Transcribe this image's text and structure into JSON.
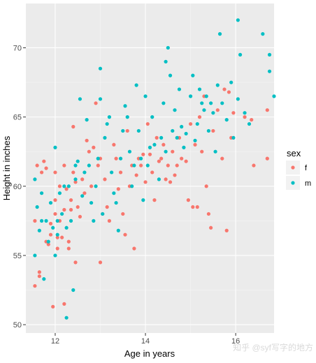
{
  "chart_data": {
    "type": "scatter",
    "title": "",
    "xlabel": "Age in years",
    "ylabel": "Height in inches",
    "xlim": [
      11.35,
      16.85
    ],
    "ylim": [
      49.4,
      73.2
    ],
    "x_ticks": [
      12,
      14,
      16
    ],
    "y_ticks": [
      50,
      55,
      60,
      65,
      70
    ],
    "grid": true,
    "legend": {
      "title": "sex",
      "placement": "right",
      "entries": [
        "f",
        "m"
      ]
    },
    "series": [
      {
        "name": "f",
        "color": "#F8766D",
        "points": [
          [
            11.55,
            57.5
          ],
          [
            11.55,
            52.8
          ],
          [
            11.6,
            61.5
          ],
          [
            11.65,
            53.8
          ],
          [
            11.65,
            53.5
          ],
          [
            11.7,
            61.0
          ],
          [
            11.75,
            61.8
          ],
          [
            11.8,
            61.3
          ],
          [
            11.8,
            56.0
          ],
          [
            11.85,
            55.8
          ],
          [
            11.9,
            56.5
          ],
          [
            11.9,
            57.3
          ],
          [
            11.95,
            51.3
          ],
          [
            12.0,
            61.0
          ],
          [
            12.0,
            59.0
          ],
          [
            12.0,
            58.0
          ],
          [
            12.05,
            56.3
          ],
          [
            12.05,
            55.5
          ],
          [
            12.1,
            60.0
          ],
          [
            12.1,
            57.5
          ],
          [
            12.15,
            56.3
          ],
          [
            12.2,
            61.5
          ],
          [
            12.2,
            58.3
          ],
          [
            12.2,
            51.5
          ],
          [
            12.25,
            59.8
          ],
          [
            12.3,
            55.5
          ],
          [
            12.3,
            56.0
          ],
          [
            12.35,
            58.3
          ],
          [
            12.35,
            59.0
          ],
          [
            12.4,
            64.3
          ],
          [
            12.4,
            61.0
          ],
          [
            12.45,
            60.3
          ],
          [
            12.45,
            54.5
          ],
          [
            12.5,
            58.5
          ],
          [
            12.55,
            57.8
          ],
          [
            12.6,
            60.5
          ],
          [
            12.65,
            59.5
          ],
          [
            12.7,
            63.3
          ],
          [
            12.75,
            62.5
          ],
          [
            12.8,
            60.0
          ],
          [
            12.85,
            62.8
          ],
          [
            12.9,
            66.0
          ],
          [
            12.95,
            61.5
          ],
          [
            13.0,
            54.5
          ],
          [
            13.0,
            62.0
          ],
          [
            13.05,
            58.0
          ],
          [
            13.1,
            60.5
          ],
          [
            13.15,
            58.5
          ],
          [
            13.2,
            57.5
          ],
          [
            13.3,
            63.0
          ],
          [
            13.35,
            62.0
          ],
          [
            13.4,
            59.8
          ],
          [
            13.45,
            61.0
          ],
          [
            13.5,
            58.0
          ],
          [
            13.55,
            56.5
          ],
          [
            13.6,
            64.0
          ],
          [
            13.65,
            60.0
          ],
          [
            13.7,
            61.5
          ],
          [
            13.75,
            55.5
          ],
          [
            13.8,
            60.8
          ],
          [
            13.85,
            62.0
          ],
          [
            13.9,
            61.5
          ],
          [
            13.95,
            62.3
          ],
          [
            14.0,
            60.3
          ],
          [
            14.05,
            64.5
          ],
          [
            14.1,
            62.3
          ],
          [
            14.15,
            61.0
          ],
          [
            14.2,
            59.0
          ],
          [
            14.25,
            63.5
          ],
          [
            14.3,
            61.8
          ],
          [
            14.35,
            62.0
          ],
          [
            14.4,
            63.0
          ],
          [
            14.45,
            60.5
          ],
          [
            14.5,
            61.5
          ],
          [
            14.55,
            60.3
          ],
          [
            14.6,
            62.5
          ],
          [
            14.65,
            60.8
          ],
          [
            14.7,
            61.5
          ],
          [
            14.75,
            63.5
          ],
          [
            14.8,
            62.0
          ],
          [
            14.9,
            61.8
          ],
          [
            14.95,
            59.0
          ],
          [
            15.0,
            64.5
          ],
          [
            15.05,
            58.5
          ],
          [
            15.1,
            63.0
          ],
          [
            15.15,
            58.5
          ],
          [
            15.2,
            65.0
          ],
          [
            15.25,
            62.5
          ],
          [
            15.3,
            66.5
          ],
          [
            15.35,
            60.0
          ],
          [
            15.4,
            58.0
          ],
          [
            15.45,
            57.0
          ],
          [
            15.5,
            64.0
          ],
          [
            15.6,
            65.5
          ],
          [
            15.7,
            62.0
          ],
          [
            15.75,
            67.0
          ],
          [
            15.8,
            56.8
          ],
          [
            15.85,
            66.8
          ],
          [
            15.9,
            63.5
          ],
          [
            15.95,
            65.3
          ],
          [
            16.2,
            65.0
          ],
          [
            16.35,
            64.8
          ],
          [
            16.4,
            61.5
          ],
          [
            16.7,
            65.5
          ],
          [
            16.7,
            62.0
          ]
        ]
      },
      {
        "name": "m",
        "color": "#00BFC4",
        "points": [
          [
            11.55,
            60.5
          ],
          [
            11.55,
            55.0
          ],
          [
            11.6,
            58.5
          ],
          [
            11.65,
            56.8
          ],
          [
            11.7,
            59.5
          ],
          [
            11.7,
            57.5
          ],
          [
            11.75,
            53.3
          ],
          [
            11.8,
            57.5
          ],
          [
            11.85,
            56.0
          ],
          [
            11.9,
            58.8
          ],
          [
            11.95,
            57.0
          ],
          [
            12.0,
            62.8
          ],
          [
            12.0,
            55.0
          ],
          [
            12.05,
            57.5
          ],
          [
            12.05,
            56.5
          ],
          [
            12.1,
            59.5
          ],
          [
            12.15,
            58.0
          ],
          [
            12.2,
            60.0
          ],
          [
            12.25,
            57.0
          ],
          [
            12.25,
            50.5
          ],
          [
            12.3,
            60.0
          ],
          [
            12.35,
            57.5
          ],
          [
            12.4,
            52.5
          ],
          [
            12.45,
            61.5
          ],
          [
            12.45,
            60.5
          ],
          [
            12.5,
            61.8
          ],
          [
            12.55,
            66.3
          ],
          [
            12.6,
            59.3
          ],
          [
            12.65,
            61.0
          ],
          [
            12.7,
            64.8
          ],
          [
            12.75,
            61.5
          ],
          [
            12.8,
            58.8
          ],
          [
            12.85,
            57.5
          ],
          [
            12.9,
            60.0
          ],
          [
            12.95,
            62.0
          ],
          [
            13.0,
            68.5
          ],
          [
            13.0,
            66.3
          ],
          [
            13.05,
            58.0
          ],
          [
            13.1,
            63.5
          ],
          [
            13.15,
            64.5
          ],
          [
            13.2,
            65.0
          ],
          [
            13.25,
            61.0
          ],
          [
            13.3,
            59.5
          ],
          [
            13.35,
            58.8
          ],
          [
            13.4,
            56.8
          ],
          [
            13.45,
            62.0
          ],
          [
            13.5,
            64.0
          ],
          [
            13.55,
            65.8
          ],
          [
            13.6,
            65.0
          ],
          [
            13.65,
            62.5
          ],
          [
            13.7,
            60.0
          ],
          [
            13.75,
            61.5
          ],
          [
            13.8,
            67.3
          ],
          [
            13.85,
            64.0
          ],
          [
            13.9,
            62.0
          ],
          [
            13.95,
            59.0
          ],
          [
            14.0,
            66.5
          ],
          [
            14.05,
            61.5
          ],
          [
            14.1,
            62.8
          ],
          [
            14.15,
            65.0
          ],
          [
            14.2,
            63.0
          ],
          [
            14.3,
            60.5
          ],
          [
            14.35,
            63.5
          ],
          [
            14.4,
            66.0
          ],
          [
            14.45,
            69.0
          ],
          [
            14.45,
            62.5
          ],
          [
            14.5,
            70.0
          ],
          [
            14.55,
            68.0
          ],
          [
            14.6,
            64.0
          ],
          [
            14.65,
            65.5
          ],
          [
            14.7,
            63.5
          ],
          [
            14.75,
            67.0
          ],
          [
            14.8,
            64.3
          ],
          [
            14.85,
            62.8
          ],
          [
            14.9,
            63.8
          ],
          [
            15.0,
            66.5
          ],
          [
            15.05,
            68.0
          ],
          [
            15.1,
            63.3
          ],
          [
            15.15,
            64.5
          ],
          [
            15.2,
            67.0
          ],
          [
            15.25,
            66.0
          ],
          [
            15.3,
            65.5
          ],
          [
            15.35,
            66.5
          ],
          [
            15.4,
            64.0
          ],
          [
            15.45,
            66.0
          ],
          [
            15.5,
            65.3
          ],
          [
            15.55,
            62.5
          ],
          [
            15.6,
            67.3
          ],
          [
            15.65,
            71.0
          ],
          [
            15.7,
            66.0
          ],
          [
            15.8,
            64.8
          ],
          [
            15.9,
            67.5
          ],
          [
            15.95,
            63.5
          ],
          [
            16.05,
            72.0
          ],
          [
            16.05,
            66.3
          ],
          [
            16.1,
            69.5
          ],
          [
            16.2,
            65.3
          ],
          [
            16.3,
            64.5
          ],
          [
            16.6,
            71.0
          ],
          [
            16.75,
            69.5
          ],
          [
            16.75,
            68.3
          ],
          [
            16.85,
            66.5
          ]
        ]
      }
    ]
  },
  "watermark": "知乎 @syf写字的地方"
}
